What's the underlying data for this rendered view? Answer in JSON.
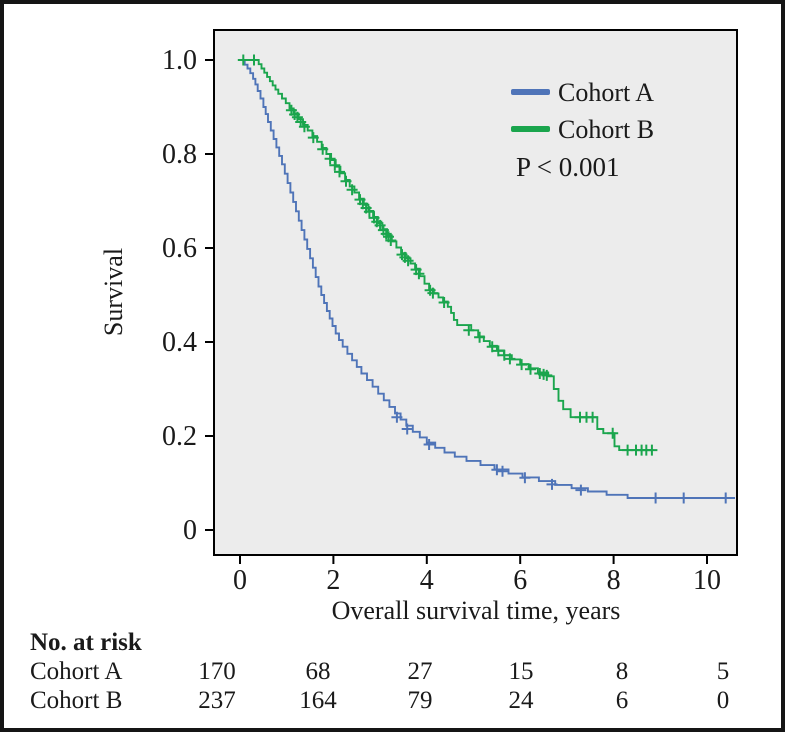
{
  "figure": {
    "background": "#ffffff",
    "frame_color": "#151515",
    "plot_background": "#ececec"
  },
  "chart_data": {
    "type": "line",
    "subtype": "kaplan-meier-step",
    "title": "",
    "xlabel": "Overall survival time, years",
    "ylabel": "Survival",
    "annotation": "P < 0.001",
    "x_ticks": [
      0,
      2,
      4,
      6,
      8,
      10
    ],
    "y_ticks": [
      "1.0",
      "0.8",
      "0.6",
      "0.4",
      "0.2",
      "0"
    ],
    "y_tick_values": [
      1.0,
      0.8,
      0.6,
      0.4,
      0.2,
      0
    ],
    "xlim": [
      -0.55,
      10.65
    ],
    "ylim": [
      -0.05,
      1.06
    ],
    "grid": false,
    "legend_position": "upper right",
    "legend": [
      {
        "label": "Cohort A",
        "color": "#4f74b8"
      },
      {
        "label": "Cohort B",
        "color": "#1aa54d"
      }
    ],
    "series": [
      {
        "name": "Cohort A",
        "color": "#4f74b8",
        "start": [
          0,
          1.0
        ],
        "end_time": 10.6,
        "steps": [
          [
            0.1,
            0.99
          ],
          [
            0.16,
            0.982
          ],
          [
            0.22,
            0.972
          ],
          [
            0.28,
            0.96
          ],
          [
            0.33,
            0.948
          ],
          [
            0.38,
            0.934
          ],
          [
            0.44,
            0.918
          ],
          [
            0.5,
            0.9
          ],
          [
            0.55,
            0.885
          ],
          [
            0.6,
            0.868
          ],
          [
            0.66,
            0.85
          ],
          [
            0.72,
            0.832
          ],
          [
            0.78,
            0.814
          ],
          [
            0.84,
            0.796
          ],
          [
            0.9,
            0.778
          ],
          [
            0.96,
            0.758
          ],
          [
            1.02,
            0.738
          ],
          [
            1.08,
            0.718
          ],
          [
            1.14,
            0.698
          ],
          [
            1.2,
            0.678
          ],
          [
            1.26,
            0.658
          ],
          [
            1.32,
            0.638
          ],
          [
            1.38,
            0.618
          ],
          [
            1.44,
            0.598
          ],
          [
            1.5,
            0.578
          ],
          [
            1.56,
            0.558
          ],
          [
            1.62,
            0.538
          ],
          [
            1.68,
            0.518
          ],
          [
            1.74,
            0.5
          ],
          [
            1.8,
            0.483
          ],
          [
            1.86,
            0.466
          ],
          [
            1.92,
            0.45
          ],
          [
            1.98,
            0.434
          ],
          [
            2.05,
            0.418
          ],
          [
            2.12,
            0.404
          ],
          [
            2.2,
            0.39
          ],
          [
            2.3,
            0.375
          ],
          [
            2.4,
            0.361
          ],
          [
            2.5,
            0.347
          ],
          [
            2.6,
            0.333
          ],
          [
            2.72,
            0.319
          ],
          [
            2.84,
            0.305
          ],
          [
            2.96,
            0.29
          ],
          [
            3.08,
            0.276
          ],
          [
            3.2,
            0.262
          ],
          [
            3.32,
            0.248
          ],
          [
            3.44,
            0.235
          ],
          [
            3.56,
            0.222
          ],
          [
            3.7,
            0.209
          ],
          [
            3.85,
            0.197
          ],
          [
            4.0,
            0.186
          ],
          [
            4.18,
            0.175
          ],
          [
            4.38,
            0.165
          ],
          [
            4.6,
            0.156
          ],
          [
            4.85,
            0.147
          ],
          [
            5.15,
            0.138
          ],
          [
            5.45,
            0.129
          ],
          [
            5.75,
            0.12
          ],
          [
            6.05,
            0.112
          ],
          [
            6.4,
            0.104
          ],
          [
            6.75,
            0.096
          ],
          [
            7.1,
            0.089
          ],
          [
            7.45,
            0.082
          ],
          [
            7.85,
            0.075
          ],
          [
            8.3,
            0.068
          ]
        ],
        "censors": [
          [
            3.36,
            0.24
          ],
          [
            3.58,
            0.215
          ],
          [
            4.05,
            0.182
          ],
          [
            5.5,
            0.128
          ],
          [
            5.62,
            0.125
          ],
          [
            6.1,
            0.111
          ],
          [
            6.68,
            0.097
          ],
          [
            7.3,
            0.085
          ],
          [
            8.9,
            0.068
          ],
          [
            9.5,
            0.068
          ],
          [
            10.4,
            0.068
          ]
        ]
      },
      {
        "name": "Cohort B",
        "color": "#1aa54d",
        "start": [
          0,
          1.0
        ],
        "end_time": 8.85,
        "steps": [
          [
            0.4,
            0.991
          ],
          [
            0.46,
            0.982
          ],
          [
            0.52,
            0.973
          ],
          [
            0.58,
            0.964
          ],
          [
            0.64,
            0.955
          ],
          [
            0.7,
            0.946
          ],
          [
            0.76,
            0.937
          ],
          [
            0.82,
            0.928
          ],
          [
            0.9,
            0.918
          ],
          [
            0.98,
            0.908
          ],
          [
            1.06,
            0.897
          ],
          [
            1.15,
            0.886
          ],
          [
            1.25,
            0.874
          ],
          [
            1.35,
            0.862
          ],
          [
            1.45,
            0.85
          ],
          [
            1.55,
            0.838
          ],
          [
            1.65,
            0.826
          ],
          [
            1.75,
            0.813
          ],
          [
            1.85,
            0.8
          ],
          [
            1.95,
            0.787
          ],
          [
            2.05,
            0.773
          ],
          [
            2.15,
            0.759
          ],
          [
            2.25,
            0.745
          ],
          [
            2.35,
            0.731
          ],
          [
            2.45,
            0.718
          ],
          [
            2.55,
            0.705
          ],
          [
            2.65,
            0.692
          ],
          [
            2.75,
            0.679
          ],
          [
            2.85,
            0.666
          ],
          [
            2.95,
            0.653
          ],
          [
            3.05,
            0.64
          ],
          [
            3.15,
            0.627
          ],
          [
            3.25,
            0.614
          ],
          [
            3.35,
            0.601
          ],
          [
            3.45,
            0.589
          ],
          [
            3.55,
            0.578
          ],
          [
            3.65,
            0.567
          ],
          [
            3.75,
            0.556
          ],
          [
            3.85,
            0.54
          ],
          [
            3.95,
            0.524
          ],
          [
            4.05,
            0.512
          ],
          [
            4.15,
            0.503
          ],
          [
            4.25,
            0.495
          ],
          [
            4.35,
            0.486
          ],
          [
            4.45,
            0.475
          ],
          [
            4.52,
            0.462
          ],
          [
            4.58,
            0.447
          ],
          [
            4.65,
            0.436
          ],
          [
            4.95,
            0.425
          ],
          [
            5.1,
            0.412
          ],
          [
            5.22,
            0.402
          ],
          [
            5.35,
            0.392
          ],
          [
            5.5,
            0.382
          ],
          [
            5.65,
            0.372
          ],
          [
            5.82,
            0.363
          ],
          [
            6.0,
            0.353
          ],
          [
            6.18,
            0.344
          ],
          [
            6.38,
            0.335
          ],
          [
            6.6,
            0.327
          ],
          [
            6.72,
            0.3
          ],
          [
            6.82,
            0.275
          ],
          [
            6.92,
            0.257
          ],
          [
            7.08,
            0.24
          ],
          [
            7.65,
            0.215
          ],
          [
            7.78,
            0.206
          ],
          [
            8.02,
            0.178
          ],
          [
            8.12,
            0.17
          ]
        ],
        "censors": [
          [
            0.07,
            1.0
          ],
          [
            0.3,
            1.0
          ],
          [
            1.1,
            0.893
          ],
          [
            1.17,
            0.884
          ],
          [
            1.23,
            0.878
          ],
          [
            1.3,
            0.868
          ],
          [
            1.38,
            0.858
          ],
          [
            1.57,
            0.835
          ],
          [
            1.77,
            0.81
          ],
          [
            1.93,
            0.79
          ],
          [
            2.03,
            0.776
          ],
          [
            2.13,
            0.762
          ],
          [
            2.27,
            0.742
          ],
          [
            2.4,
            0.724
          ],
          [
            2.57,
            0.703
          ],
          [
            2.63,
            0.694
          ],
          [
            2.7,
            0.685
          ],
          [
            2.77,
            0.677
          ],
          [
            2.87,
            0.664
          ],
          [
            2.93,
            0.656
          ],
          [
            3.0,
            0.648
          ],
          [
            3.07,
            0.638
          ],
          [
            3.13,
            0.63
          ],
          [
            3.18,
            0.624
          ],
          [
            3.23,
            0.616
          ],
          [
            3.47,
            0.586
          ],
          [
            3.53,
            0.58
          ],
          [
            3.6,
            0.573
          ],
          [
            3.77,
            0.554
          ],
          [
            3.83,
            0.545
          ],
          [
            4.07,
            0.51
          ],
          [
            4.13,
            0.504
          ],
          [
            4.37,
            0.484
          ],
          [
            4.9,
            0.425
          ],
          [
            5.13,
            0.41
          ],
          [
            5.4,
            0.39
          ],
          [
            5.53,
            0.381
          ],
          [
            5.66,
            0.372
          ],
          [
            5.78,
            0.364
          ],
          [
            6.03,
            0.352
          ],
          [
            6.22,
            0.342
          ],
          [
            6.42,
            0.333
          ],
          [
            6.5,
            0.331
          ],
          [
            6.57,
            0.329
          ],
          [
            7.28,
            0.24
          ],
          [
            7.42,
            0.24
          ],
          [
            7.55,
            0.24
          ],
          [
            7.98,
            0.206
          ],
          [
            8.3,
            0.17
          ],
          [
            8.48,
            0.17
          ],
          [
            8.6,
            0.17
          ],
          [
            8.7,
            0.17
          ],
          [
            8.82,
            0.17
          ]
        ]
      }
    ]
  },
  "risk_table": {
    "header": "No. at risk",
    "time_points": [
      0,
      2,
      4,
      6,
      8,
      10
    ],
    "rows": [
      {
        "label": "Cohort A",
        "values": [
          "170",
          "68",
          "27",
          "15",
          "8",
          "5"
        ]
      },
      {
        "label": "Cohort B",
        "values": [
          "237",
          "164",
          "79",
          "24",
          "6",
          "0"
        ]
      }
    ]
  }
}
